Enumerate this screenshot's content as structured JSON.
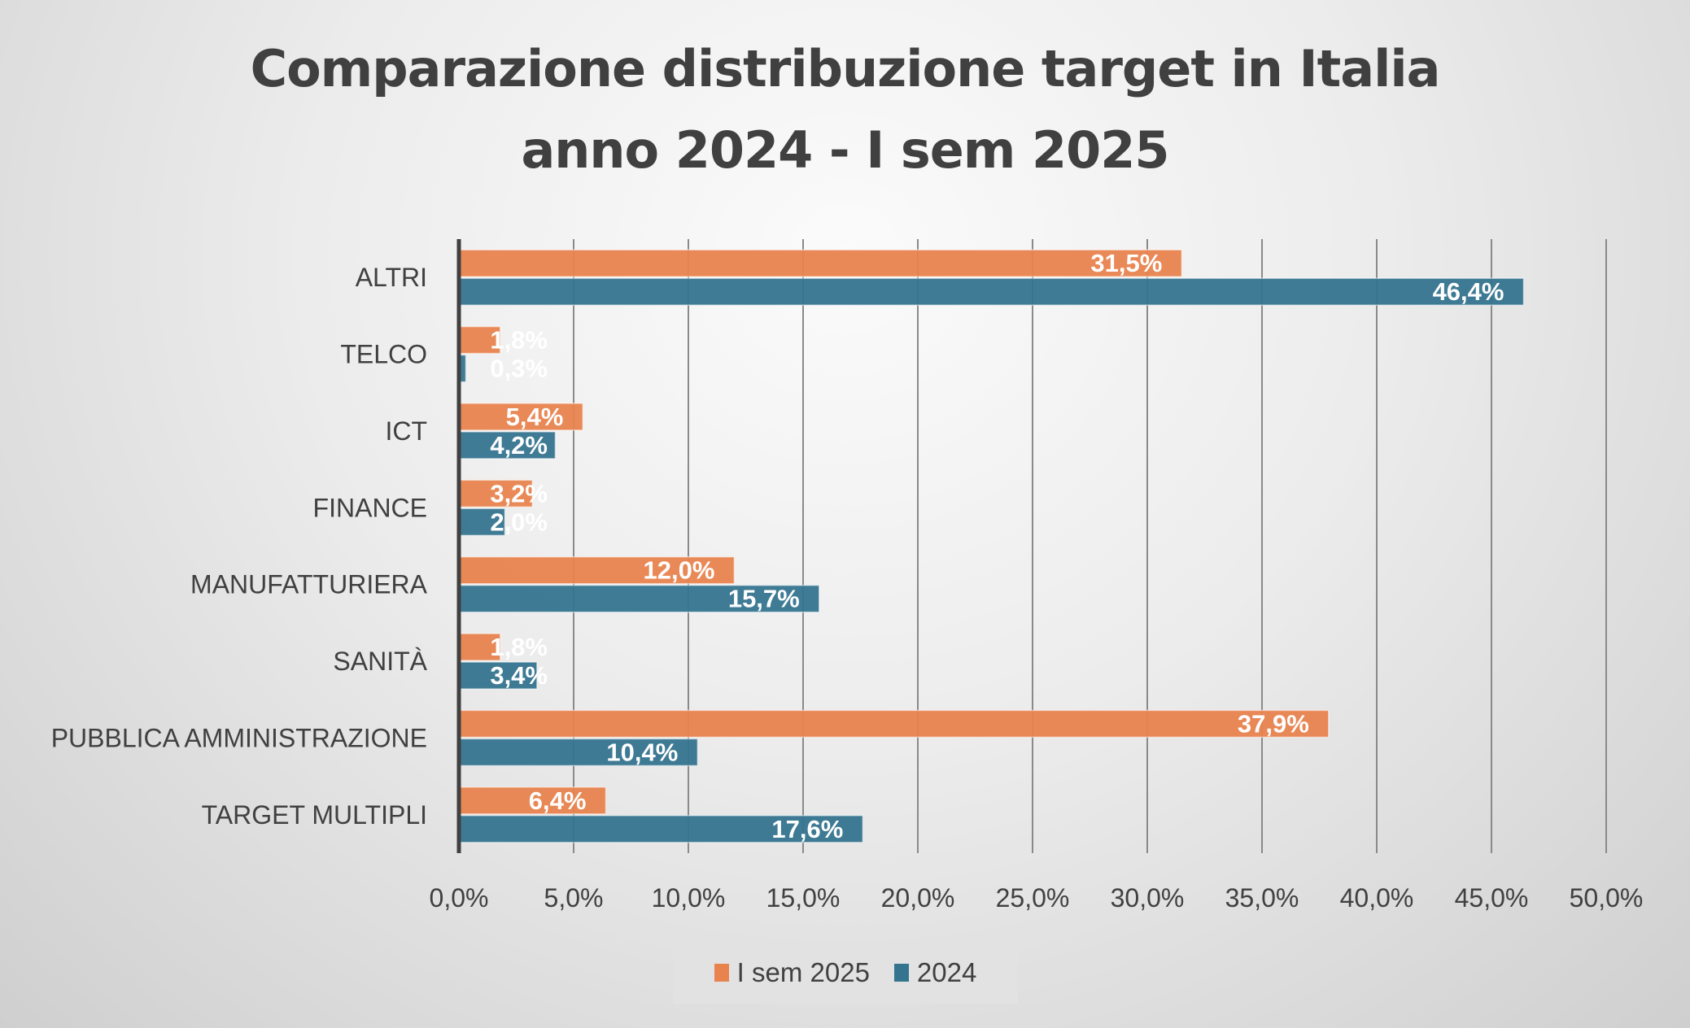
{
  "chart_data": {
    "type": "bar",
    "orientation": "horizontal",
    "title": [
      "Comparazione distribuzione target in Italia",
      "anno 2024 - I sem 2025"
    ],
    "categories": [
      "ALTRI",
      "TELCO",
      "ICT",
      "FINANCE",
      "MANUFATTURIERA",
      "SANITÀ",
      "PUBBLICA AMMINISTRAZIONE",
      "TARGET MULTIPLI"
    ],
    "series": [
      {
        "name": "I sem 2025",
        "color": "#E8834E",
        "values": [
          31.5,
          1.8,
          5.4,
          3.2,
          12.0,
          1.8,
          37.9,
          6.4
        ],
        "labels": [
          "31,5%",
          "1,8%",
          "5,4%",
          "3,2%",
          "12,0%",
          "1,8%",
          "37,9%",
          "6,4%"
        ]
      },
      {
        "name": "2024",
        "color": "#35748F",
        "values": [
          46.4,
          0.3,
          4.2,
          2.0,
          15.7,
          3.4,
          10.4,
          17.6
        ],
        "labels": [
          "46,4%",
          "0,3%",
          "4,2%",
          "2,0%",
          "15,7%",
          "3,4%",
          "10,4%",
          "17,6%"
        ]
      }
    ],
    "xlim": [
      0,
      50
    ],
    "xticks": [
      "0,0%",
      "5,0%",
      "10,0%",
      "15,0%",
      "20,0%",
      "25,0%",
      "30,0%",
      "35,0%",
      "40,0%",
      "45,0%",
      "50,0%"
    ],
    "grid": true,
    "legend": "bottom"
  }
}
